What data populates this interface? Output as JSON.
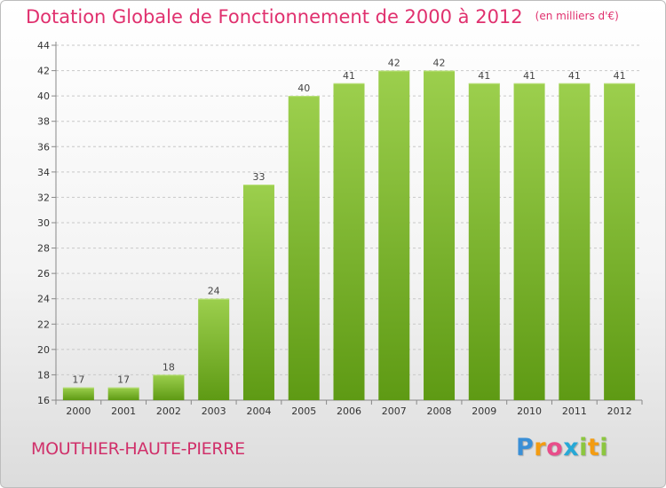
{
  "title": "Dotation Globale de Fonctionnement de 2000 à 2012",
  "subtitle": "(en milliers d'€)",
  "commune": "MOUTHIER-HAUTE-PIERRE",
  "logo": {
    "text": "Proxiti",
    "letters": [
      {
        "ch": "P",
        "color": "#3a8fd6"
      },
      {
        "ch": "r",
        "color": "#f39c12"
      },
      {
        "ch": "o",
        "color": "#e84d8a"
      },
      {
        "ch": "x",
        "color": "#27a8d6"
      },
      {
        "ch": "i",
        "color": "#8cc63f"
      },
      {
        "ch": "t",
        "color": "#f39c12"
      },
      {
        "ch": "i",
        "color": "#8cc63f"
      }
    ]
  },
  "colors": {
    "bar_top": "#9ccf4d",
    "bar_bottom": "#5e9a14",
    "grid": "#c8c8c8",
    "axis_text": "#333333",
    "label_text": "#444444"
  },
  "chart_data": {
    "type": "bar",
    "categories": [
      "2000",
      "2001",
      "2002",
      "2003",
      "2004",
      "2005",
      "2006",
      "2007",
      "2008",
      "2009",
      "2010",
      "2011",
      "2012"
    ],
    "values": [
      17,
      17,
      18,
      24,
      33,
      40,
      41,
      42,
      42,
      41,
      41,
      41,
      41
    ],
    "data_labels": [
      "17",
      "17",
      "18",
      "24",
      "33",
      "40",
      "41",
      "42",
      "42",
      "41",
      "41",
      "41",
      "41"
    ],
    "yticks": [
      "16",
      "18",
      "20",
      "22",
      "24",
      "26",
      "28",
      "30",
      "32",
      "34",
      "36",
      "38",
      "40",
      "42",
      "44"
    ],
    "ylim": [
      16,
      44
    ],
    "grid": true
  }
}
